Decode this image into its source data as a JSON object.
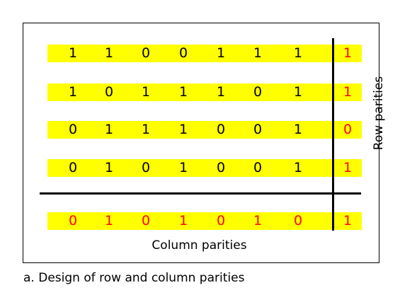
{
  "rows": [
    {
      "bits": [
        "1",
        "1",
        "0",
        "0",
        "1",
        "1",
        "1"
      ],
      "parity": "1"
    },
    {
      "bits": [
        "1",
        "0",
        "1",
        "1",
        "1",
        "0",
        "1"
      ],
      "parity": "1"
    },
    {
      "bits": [
        "0",
        "1",
        "1",
        "1",
        "0",
        "0",
        "1"
      ],
      "parity": "0"
    },
    {
      "bits": [
        "0",
        "1",
        "0",
        "1",
        "0",
        "0",
        "1"
      ],
      "parity": "1"
    }
  ],
  "column_parities": {
    "bits": [
      "0",
      "1",
      "0",
      "1",
      "0",
      "1",
      "0"
    ],
    "parity": "1"
  },
  "labels": {
    "row_parities": "Row parities",
    "column_parities": "Column parities",
    "caption": "a. Design of row and column parities"
  },
  "colors": {
    "band": "#ffff00",
    "parity_text": "#ff0000",
    "text": "#000000"
  }
}
